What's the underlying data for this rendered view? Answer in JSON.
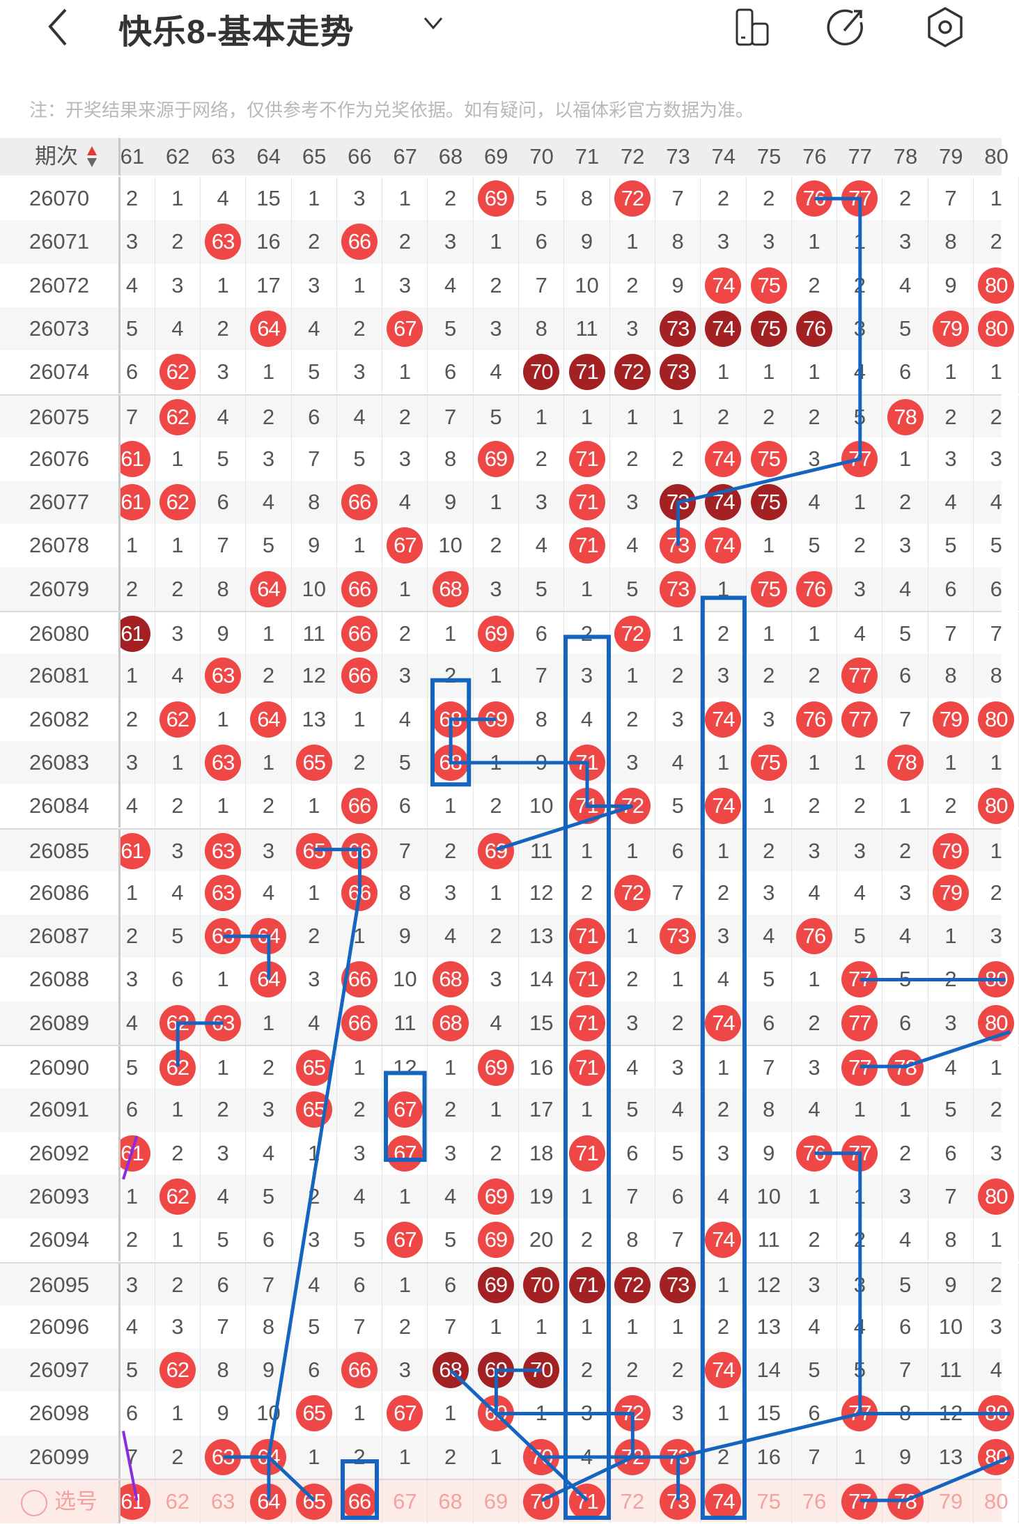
{
  "header": {
    "title": "快乐8-基本走势",
    "back_icon": "chevron-left-icon",
    "dropdown_icon": "chevron-down-icon",
    "actions": [
      {
        "name": "layout-toggle-icon"
      },
      {
        "name": "share-icon"
      },
      {
        "name": "settings-icon"
      }
    ]
  },
  "note": "注：开奖结果来源于网络，仅供参考不作为兑奖依据。如有疑问，以福体彩官方数据为准。",
  "table": {
    "period_header": "期次",
    "columns": [
      61,
      62,
      63,
      64,
      65,
      66,
      67,
      68,
      69,
      70,
      71,
      72,
      73,
      74,
      75,
      76,
      77,
      78,
      79,
      80
    ],
    "colors": {
      "hit": "#ef4646",
      "consecutive_hit": "#a32023",
      "line": "#1565c0",
      "select_bg": "#fdebe8"
    },
    "rows": [
      {
        "period": "26070",
        "values": [
          2,
          1,
          4,
          15,
          1,
          3,
          1,
          2,
          69,
          5,
          8,
          72,
          7,
          2,
          2,
          76,
          77,
          2,
          7,
          1
        ],
        "dark": []
      },
      {
        "period": "26071",
        "values": [
          3,
          2,
          63,
          16,
          2,
          66,
          2,
          3,
          1,
          6,
          9,
          1,
          8,
          3,
          3,
          1,
          1,
          3,
          8,
          2
        ],
        "dark": []
      },
      {
        "period": "26072",
        "values": [
          4,
          3,
          1,
          17,
          3,
          1,
          3,
          4,
          2,
          7,
          10,
          2,
          9,
          74,
          75,
          2,
          2,
          4,
          9,
          80
        ],
        "dark": []
      },
      {
        "period": "26073",
        "values": [
          5,
          4,
          2,
          64,
          4,
          2,
          67,
          5,
          3,
          8,
          11,
          3,
          73,
          74,
          75,
          76,
          3,
          5,
          79,
          80
        ],
        "dark": [
          73,
          74,
          75,
          76
        ]
      },
      {
        "period": "26074",
        "values": [
          6,
          62,
          3,
          1,
          5,
          3,
          1,
          6,
          4,
          70,
          71,
          72,
          73,
          1,
          1,
          1,
          4,
          6,
          1,
          1
        ],
        "dark": [
          70,
          71,
          72,
          73
        ]
      },
      {
        "period": "26075",
        "values": [
          7,
          62,
          4,
          2,
          6,
          4,
          2,
          7,
          5,
          1,
          1,
          1,
          1,
          2,
          2,
          2,
          5,
          78,
          2,
          2
        ],
        "dark": []
      },
      {
        "period": "26076",
        "values": [
          61,
          1,
          5,
          3,
          7,
          5,
          3,
          8,
          69,
          2,
          71,
          2,
          2,
          74,
          75,
          3,
          77,
          1,
          3,
          3
        ],
        "dark": []
      },
      {
        "period": "26077",
        "values": [
          61,
          62,
          6,
          4,
          8,
          66,
          4,
          9,
          1,
          3,
          71,
          3,
          73,
          74,
          75,
          4,
          1,
          2,
          4,
          4
        ],
        "dark": [
          73,
          74,
          75
        ]
      },
      {
        "period": "26078",
        "values": [
          1,
          1,
          7,
          5,
          9,
          1,
          67,
          10,
          2,
          4,
          71,
          4,
          73,
          74,
          1,
          5,
          2,
          3,
          5,
          5
        ],
        "dark": []
      },
      {
        "period": "26079",
        "values": [
          2,
          2,
          8,
          64,
          10,
          66,
          1,
          68,
          3,
          5,
          1,
          5,
          73,
          1,
          75,
          76,
          3,
          4,
          6,
          6
        ],
        "dark": []
      },
      {
        "period": "26080",
        "values": [
          61,
          3,
          9,
          1,
          11,
          66,
          2,
          1,
          69,
          6,
          2,
          72,
          1,
          2,
          1,
          1,
          4,
          5,
          7,
          7
        ],
        "dark": [
          61
        ]
      },
      {
        "period": "26081",
        "values": [
          1,
          4,
          63,
          2,
          12,
          66,
          3,
          2,
          1,
          7,
          3,
          1,
          2,
          3,
          2,
          2,
          77,
          6,
          8,
          8
        ],
        "dark": []
      },
      {
        "period": "26082",
        "values": [
          2,
          62,
          1,
          64,
          13,
          1,
          4,
          68,
          69,
          8,
          4,
          2,
          3,
          74,
          3,
          76,
          77,
          7,
          79,
          80
        ],
        "dark": []
      },
      {
        "period": "26083",
        "values": [
          3,
          1,
          63,
          1,
          65,
          2,
          5,
          68,
          1,
          9,
          71,
          3,
          4,
          1,
          75,
          1,
          1,
          78,
          1,
          1
        ],
        "dark": []
      },
      {
        "period": "26084",
        "values": [
          4,
          2,
          1,
          2,
          1,
          66,
          6,
          1,
          2,
          10,
          71,
          72,
          5,
          74,
          1,
          2,
          2,
          1,
          2,
          80
        ],
        "dark": []
      },
      {
        "period": "26085",
        "values": [
          61,
          3,
          63,
          3,
          65,
          66,
          7,
          2,
          69,
          11,
          1,
          1,
          6,
          1,
          2,
          3,
          3,
          2,
          79,
          1
        ],
        "dark": []
      },
      {
        "period": "26086",
        "values": [
          1,
          4,
          63,
          4,
          1,
          66,
          8,
          3,
          1,
          12,
          2,
          72,
          7,
          2,
          3,
          4,
          4,
          3,
          79,
          2
        ],
        "dark": []
      },
      {
        "period": "26087",
        "values": [
          2,
          5,
          63,
          64,
          2,
          1,
          9,
          4,
          2,
          13,
          71,
          1,
          73,
          3,
          4,
          76,
          5,
          4,
          1,
          3
        ],
        "dark": []
      },
      {
        "period": "26088",
        "values": [
          3,
          6,
          1,
          64,
          3,
          66,
          10,
          68,
          3,
          14,
          71,
          2,
          1,
          4,
          5,
          1,
          77,
          5,
          2,
          80
        ],
        "dark": []
      },
      {
        "period": "26089",
        "values": [
          4,
          62,
          63,
          1,
          4,
          66,
          11,
          68,
          4,
          15,
          71,
          3,
          2,
          74,
          6,
          2,
          77,
          6,
          3,
          80
        ],
        "dark": []
      },
      {
        "period": "26090",
        "values": [
          5,
          62,
          1,
          2,
          65,
          1,
          12,
          1,
          69,
          16,
          71,
          4,
          3,
          1,
          7,
          3,
          77,
          78,
          4,
          1
        ],
        "dark": []
      },
      {
        "period": "26091",
        "values": [
          6,
          1,
          2,
          3,
          65,
          2,
          67,
          2,
          1,
          17,
          1,
          5,
          4,
          2,
          8,
          4,
          1,
          1,
          5,
          2
        ],
        "dark": []
      },
      {
        "period": "26092",
        "values": [
          61,
          2,
          3,
          4,
          1,
          3,
          67,
          3,
          2,
          18,
          71,
          6,
          5,
          3,
          9,
          76,
          77,
          2,
          6,
          3
        ],
        "dark": []
      },
      {
        "period": "26093",
        "values": [
          1,
          62,
          4,
          5,
          2,
          4,
          1,
          4,
          69,
          19,
          1,
          7,
          6,
          4,
          10,
          1,
          1,
          3,
          7,
          80
        ],
        "dark": []
      },
      {
        "period": "26094",
        "values": [
          2,
          1,
          5,
          6,
          3,
          5,
          67,
          5,
          69,
          20,
          2,
          8,
          7,
          74,
          11,
          2,
          2,
          4,
          8,
          1
        ],
        "dark": []
      },
      {
        "period": "26095",
        "values": [
          3,
          2,
          6,
          7,
          4,
          6,
          1,
          6,
          69,
          70,
          71,
          72,
          73,
          1,
          12,
          3,
          3,
          5,
          9,
          2
        ],
        "dark": [
          69,
          70,
          71,
          72,
          73
        ]
      },
      {
        "period": "26096",
        "values": [
          4,
          3,
          7,
          8,
          5,
          7,
          2,
          7,
          1,
          1,
          1,
          1,
          1,
          2,
          13,
          4,
          4,
          6,
          10,
          3
        ],
        "dark": []
      },
      {
        "period": "26097",
        "values": [
          5,
          62,
          8,
          9,
          6,
          66,
          3,
          68,
          69,
          70,
          2,
          2,
          2,
          74,
          14,
          5,
          5,
          7,
          11,
          4
        ],
        "dark": [
          68,
          69,
          70
        ]
      },
      {
        "period": "26098",
        "values": [
          6,
          1,
          9,
          10,
          65,
          1,
          67,
          1,
          69,
          1,
          3,
          72,
          3,
          1,
          15,
          6,
          77,
          8,
          12,
          80
        ],
        "dark": []
      },
      {
        "period": "26099",
        "values": [
          7,
          2,
          63,
          64,
          1,
          2,
          1,
          2,
          1,
          70,
          4,
          72,
          73,
          2,
          16,
          7,
          1,
          9,
          13,
          80
        ],
        "dark": []
      }
    ],
    "select_row": {
      "label": "选号",
      "values": [
        61,
        62,
        63,
        64,
        65,
        66,
        67,
        68,
        69,
        70,
        71,
        72,
        73,
        74,
        75,
        76,
        77,
        78,
        79,
        80
      ],
      "selected": [
        61,
        64,
        65,
        66,
        70,
        71,
        73,
        74,
        77,
        78
      ]
    }
  }
}
